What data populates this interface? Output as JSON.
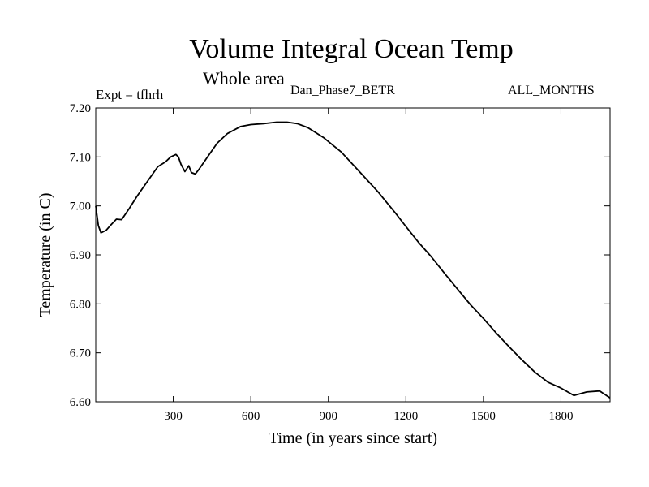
{
  "header": {
    "title": "Volume Integral Ocean Temp",
    "subtitle": "Whole area",
    "expt_label": "Expt = tfhrh",
    "dataset": "Dan_Phase7_BETR",
    "period": "ALL_MONTHS"
  },
  "chart_data": {
    "type": "line",
    "title": "Volume Integral Ocean Temp",
    "xlabel": "Time (in years since start)",
    "ylabel": "Temperature (in C)",
    "xlim": [
      0,
      1990
    ],
    "ylim": [
      6.6,
      7.2
    ],
    "xticks": [
      300,
      600,
      900,
      1200,
      1500,
      1800
    ],
    "yticks": [
      6.6,
      6.7,
      6.8,
      6.9,
      7.0,
      7.1,
      7.2
    ],
    "ytick_labels": [
      "6.60",
      "6.70",
      "6.80",
      "6.90",
      "7.00",
      "7.10",
      "7.20"
    ],
    "grid": false,
    "series": [
      {
        "name": "Volume Integral Ocean Temp",
        "x": [
          0,
          10,
          20,
          40,
          60,
          80,
          100,
          130,
          160,
          200,
          240,
          270,
          290,
          310,
          320,
          330,
          345,
          360,
          370,
          385,
          400,
          430,
          470,
          510,
          560,
          600,
          650,
          700,
          740,
          780,
          820,
          880,
          950,
          1020,
          1090,
          1160,
          1200,
          1250,
          1300,
          1350,
          1400,
          1450,
          1500,
          1550,
          1600,
          1650,
          1700,
          1750,
          1800,
          1850,
          1900,
          1950,
          1990
        ],
        "y": [
          7.0,
          6.96,
          6.945,
          6.95,
          6.962,
          6.973,
          6.972,
          6.995,
          7.02,
          7.05,
          7.08,
          7.09,
          7.1,
          7.105,
          7.1,
          7.085,
          7.07,
          7.082,
          7.068,
          7.065,
          7.075,
          7.098,
          7.128,
          7.148,
          7.162,
          7.166,
          7.168,
          7.171,
          7.171,
          7.168,
          7.16,
          7.14,
          7.11,
          7.07,
          7.03,
          6.985,
          6.958,
          6.925,
          6.895,
          6.862,
          6.83,
          6.798,
          6.77,
          6.74,
          6.712,
          6.685,
          6.66,
          6.64,
          6.628,
          6.613,
          6.62,
          6.622,
          6.608
        ]
      }
    ]
  }
}
